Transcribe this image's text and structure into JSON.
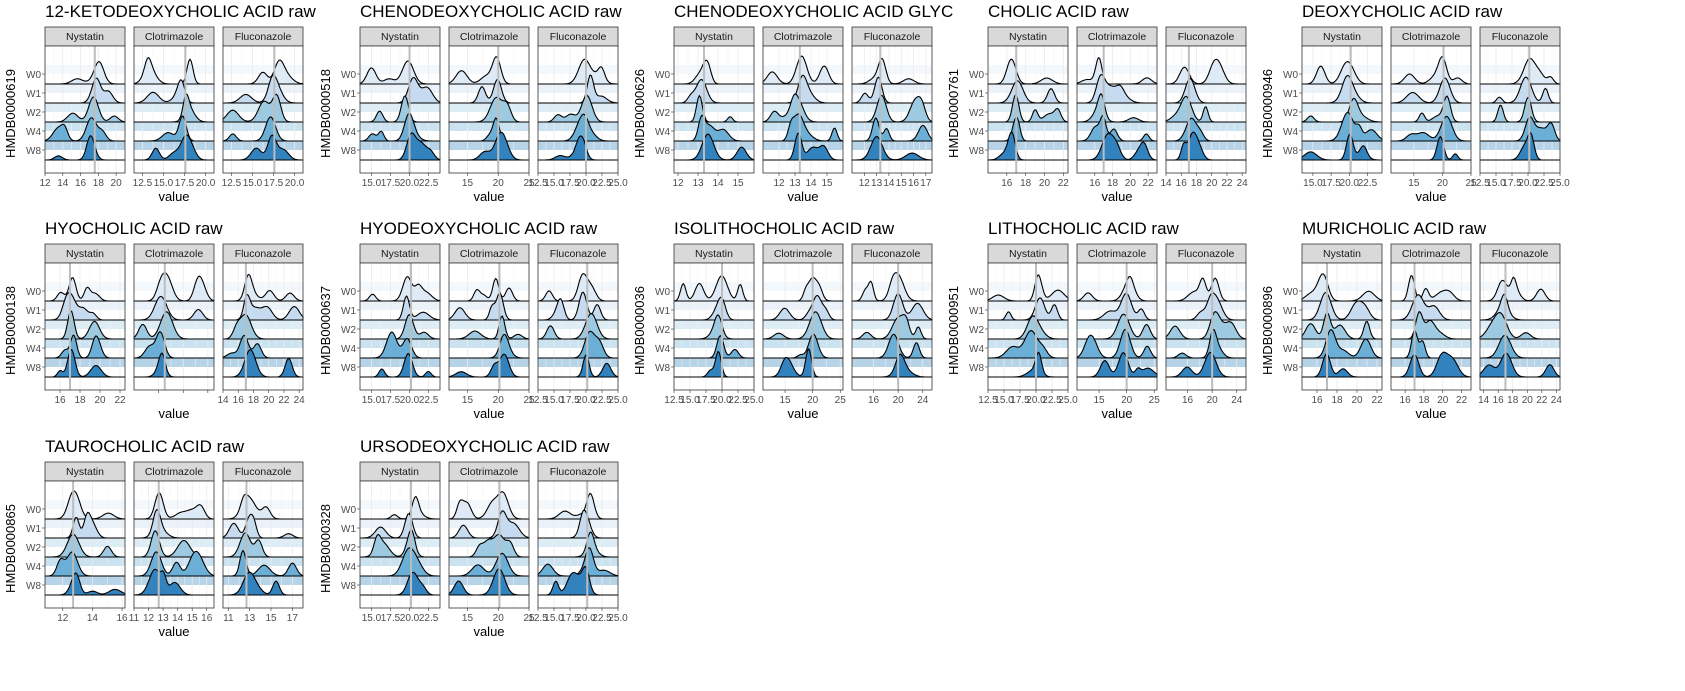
{
  "facet_labels": [
    "Nystatin",
    "Clotrimazole",
    "Fluconazole"
  ],
  "row_labels": [
    "W0",
    "W1",
    "W2",
    "W4",
    "W8"
  ],
  "fill_colors": [
    "#deebf7",
    "#c6dbef",
    "#9ecae1",
    "#6baed6",
    "#3182bd"
  ],
  "strip_color": "#d9d9d9",
  "reference_line_color": "#bdbdbd",
  "chart_data": [
    {
      "type": "ridgeline",
      "title": "12-KETODEOXYCHOLIC ACID raw",
      "ylabel": "HMDB0000619",
      "xlabel": "value",
      "ref": 17.6,
      "panels": [
        {
          "xlim": [
            12,
            21
          ],
          "ticks": [
            12,
            14,
            16,
            18,
            20
          ],
          "tick_labels": [
            "12",
            "14",
            "16",
            "18",
            "20"
          ]
        },
        {
          "xlim": [
            11.5,
            21
          ],
          "ticks": [
            12.5,
            15,
            17.5,
            20
          ],
          "tick_labels": [
            "12.5",
            "15.0",
            "17.5",
            "20.0"
          ]
        },
        {
          "xlim": [
            11.5,
            21
          ],
          "ticks": [
            12.5,
            15,
            17.5,
            20
          ],
          "tick_labels": [
            "12.5",
            "15.0",
            "17.5",
            "20.0"
          ]
        }
      ]
    },
    {
      "type": "ridgeline",
      "title": "CHENODEOXYCHOLIC ACID raw",
      "ylabel": "HMDB0000518",
      "xlabel": "value",
      "ref": 20.0,
      "panels": [
        {
          "xlim": [
            13.5,
            24
          ],
          "ticks": [
            15,
            17.5,
            20,
            22.5
          ],
          "tick_labels": [
            "15.0",
            "17.5",
            "20.0",
            "22.5"
          ]
        },
        {
          "xlim": [
            12,
            25
          ],
          "ticks": [
            15,
            20,
            25
          ],
          "tick_labels": [
            "15",
            "20",
            "25"
          ]
        },
        {
          "xlim": [
            12.5,
            25
          ],
          "ticks": [
            12.5,
            15,
            17.5,
            20,
            22.5,
            25
          ],
          "tick_labels": [
            "12.5",
            "15.0",
            "17.5",
            "20.0",
            "22.5",
            "25.0"
          ]
        }
      ]
    },
    {
      "type": "ridgeline",
      "title": "CHENODEOXYCHOLIC ACID GLYC",
      "ylabel": "HMDB0000626",
      "xlabel": "value",
      "ref": 13.3,
      "panels": [
        {
          "xlim": [
            11.8,
            15.8
          ],
          "ticks": [
            12,
            13,
            14,
            15
          ],
          "tick_labels": [
            "12",
            "13",
            "14",
            "15"
          ]
        },
        {
          "xlim": [
            11,
            16
          ],
          "ticks": [
            12,
            13,
            14,
            15
          ],
          "tick_labels": [
            "12",
            "13",
            "14",
            "15"
          ]
        },
        {
          "xlim": [
            11,
            17.5
          ],
          "ticks": [
            12,
            13,
            14,
            15,
            16,
            17
          ],
          "tick_labels": [
            "12",
            "13",
            "14",
            "15",
            "16",
            "17"
          ]
        }
      ]
    },
    {
      "type": "ridgeline",
      "title": "CHOLIC ACID raw",
      "ylabel": "HMDB0000761",
      "xlabel": "value",
      "ref": 17.0,
      "panels": [
        {
          "xlim": [
            14,
            22.5
          ],
          "ticks": [
            16,
            18,
            20,
            22
          ],
          "tick_labels": [
            "16",
            "18",
            "20",
            "22"
          ]
        },
        {
          "xlim": [
            14,
            23
          ],
          "ticks": [
            16,
            18,
            20,
            22
          ],
          "tick_labels": [
            "16",
            "18",
            "20",
            "22"
          ]
        },
        {
          "xlim": [
            14,
            24.5
          ],
          "ticks": [
            14,
            16,
            18,
            20,
            22,
            24
          ],
          "tick_labels": [
            "14",
            "16",
            "18",
            "20",
            "22",
            "24"
          ]
        }
      ]
    },
    {
      "type": "ridgeline",
      "title": "DEOXYCHOLIC ACID raw",
      "ylabel": "HMDB0000946",
      "xlabel": "value",
      "ref": 20.2,
      "panels": [
        {
          "xlim": [
            13.5,
            24.5
          ],
          "ticks": [
            15,
            17.5,
            20,
            22.5
          ],
          "tick_labels": [
            "15.0",
            "17.5",
            "20.0",
            "22.5"
          ]
        },
        {
          "xlim": [
            11,
            25
          ],
          "ticks": [
            15,
            20,
            25
          ],
          "tick_labels": [
            "15",
            "20",
            "25"
          ]
        },
        {
          "xlim": [
            12.5,
            25
          ],
          "ticks": [
            12.5,
            15,
            17.5,
            20,
            22.5,
            25
          ],
          "tick_labels": [
            "12.5",
            "15.0",
            "17.5",
            "20.0",
            "22.5",
            "25.0"
          ]
        }
      ]
    },
    {
      "type": "ridgeline",
      "title": "HYOCHOLIC ACID raw",
      "ylabel": "HMDB0000138",
      "xlabel": "value",
      "ref": 17.0,
      "panels": [
        {
          "xlim": [
            14.5,
            22.5
          ],
          "ticks": [
            16,
            18,
            20,
            22
          ],
          "tick_labels": [
            "16",
            "18",
            "20",
            "22"
          ]
        },
        {
          "xlim": [
            12,
            25
          ],
          "ticks": [
            16,
            20,
            24
          ],
          "tick_labels": [
            "",
            "",
            ""
          ]
        },
        {
          "xlim": [
            14,
            24.5
          ],
          "ticks": [
            14,
            16,
            18,
            20,
            22,
            24
          ],
          "tick_labels": [
            "14",
            "16",
            "18",
            "20",
            "22",
            "24"
          ]
        }
      ]
    },
    {
      "type": "ridgeline",
      "title": "HYODEOXYCHOLIC ACID raw",
      "ylabel": "HMDB0000637",
      "xlabel": "value",
      "ref": 20.2,
      "panels": [
        {
          "xlim": [
            13.5,
            24
          ],
          "ticks": [
            15,
            17.5,
            20,
            22.5
          ],
          "tick_labels": [
            "15.0",
            "17.5",
            "20.0",
            "22.5"
          ]
        },
        {
          "xlim": [
            12,
            25
          ],
          "ticks": [
            15,
            20,
            25
          ],
          "tick_labels": [
            "15",
            "20",
            "25"
          ]
        },
        {
          "xlim": [
            12.5,
            25
          ],
          "ticks": [
            12.5,
            15,
            17.5,
            20,
            22.5,
            25
          ],
          "tick_labels": [
            "12.5",
            "15.0",
            "17.5",
            "20.0",
            "22.5",
            "25.0"
          ]
        }
      ]
    },
    {
      "type": "ridgeline",
      "title": "ISOLITHOCHOLIC ACID raw",
      "ylabel": "HMDB0000036",
      "xlabel": "value",
      "ref": 20.0,
      "panels": [
        {
          "xlim": [
            12.5,
            25
          ],
          "ticks": [
            12.5,
            15,
            17.5,
            20,
            22.5,
            25
          ],
          "tick_labels": [
            "12.5",
            "15.0",
            "17.5",
            "20.0",
            "22.5",
            "25.0"
          ]
        },
        {
          "xlim": [
            11,
            25.5
          ],
          "ticks": [
            15,
            20,
            25
          ],
          "tick_labels": [
            "15",
            "20",
            "25"
          ]
        },
        {
          "xlim": [
            12.5,
            25.5
          ],
          "ticks": [
            16,
            20,
            24
          ],
          "tick_labels": [
            "16",
            "20",
            "24"
          ]
        }
      ]
    },
    {
      "type": "ridgeline",
      "title": "LITHOCHOLIC ACID raw",
      "ylabel": "HMDB0000951",
      "xlabel": "value",
      "ref": 20.0,
      "panels": [
        {
          "xlim": [
            12.5,
            25
          ],
          "ticks": [
            12.5,
            15,
            17.5,
            20,
            22.5,
            25
          ],
          "tick_labels": [
            "12.5",
            "15.0",
            "17.5",
            "20.0",
            "22.5",
            "25.0"
          ]
        },
        {
          "xlim": [
            11,
            25.5
          ],
          "ticks": [
            15,
            20,
            25
          ],
          "tick_labels": [
            "15",
            "20",
            "25"
          ]
        },
        {
          "xlim": [
            12.5,
            25.5
          ],
          "ticks": [
            16,
            20,
            24
          ],
          "tick_labels": [
            "16",
            "20",
            "24"
          ]
        }
      ]
    },
    {
      "type": "ridgeline",
      "title": "MURICHOLIC ACID raw",
      "ylabel": "HMDB0000896",
      "xlabel": "value",
      "ref": 17.0,
      "panels": [
        {
          "xlim": [
            14.5,
            22.5
          ],
          "ticks": [
            16,
            18,
            20,
            22
          ],
          "tick_labels": [
            "16",
            "18",
            "20",
            "22"
          ]
        },
        {
          "xlim": [
            14.5,
            23
          ],
          "ticks": [
            16,
            18,
            20,
            22
          ],
          "tick_labels": [
            "16",
            "18",
            "20",
            "22"
          ]
        },
        {
          "xlim": [
            13.5,
            24.5
          ],
          "ticks": [
            14,
            16,
            18,
            20,
            22,
            24
          ],
          "tick_labels": [
            "14",
            "16",
            "18",
            "20",
            "22",
            "24"
          ]
        }
      ]
    },
    {
      "type": "ridgeline",
      "title": "TAUROCHOLIC ACID raw",
      "ylabel": "HMDB0000865",
      "xlabel": "value",
      "ref": 12.7,
      "panels": [
        {
          "xlim": [
            10.8,
            16.2
          ],
          "ticks": [
            12,
            14,
            16
          ],
          "tick_labels": [
            "12",
            "14",
            "16"
          ]
        },
        {
          "xlim": [
            11,
            16.5
          ],
          "ticks": [
            11,
            12,
            13,
            14,
            15,
            16
          ],
          "tick_labels": [
            "11",
            "12",
            "13",
            "14",
            "15",
            "16"
          ]
        },
        {
          "xlim": [
            10.5,
            18
          ],
          "ticks": [
            11,
            13,
            15,
            17
          ],
          "tick_labels": [
            "11",
            "13",
            "15",
            "17"
          ]
        }
      ]
    },
    {
      "type": "ridgeline",
      "title": "URSODEOXYCHOLIC ACID raw",
      "ylabel": "HMDB0000328",
      "xlabel": "value",
      "ref": 20.2,
      "panels": [
        {
          "xlim": [
            13.5,
            24
          ],
          "ticks": [
            15,
            17.5,
            20,
            22.5
          ],
          "tick_labels": [
            "15.0",
            "17.5",
            "20.0",
            "22.5"
          ]
        },
        {
          "xlim": [
            12,
            25
          ],
          "ticks": [
            15,
            20,
            25
          ],
          "tick_labels": [
            "15",
            "20",
            "25"
          ]
        },
        {
          "xlim": [
            12.5,
            25
          ],
          "ticks": [
            12.5,
            15,
            17.5,
            20,
            22.5,
            25
          ],
          "tick_labels": [
            "12.5",
            "15.0",
            "17.5",
            "20.0",
            "22.5",
            "25.0"
          ]
        }
      ]
    }
  ]
}
